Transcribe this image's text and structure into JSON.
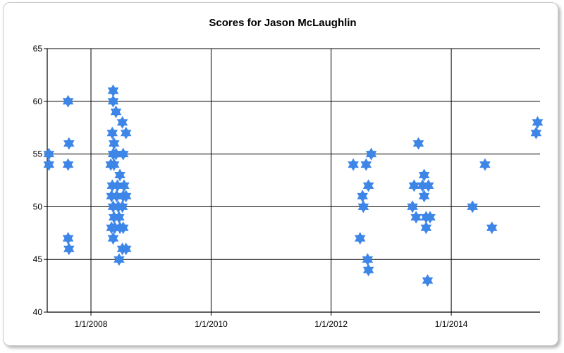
{
  "chart_data": {
    "type": "scatter",
    "title": "Scores for Jason McLaughlin",
    "xlabel": "",
    "ylabel": "",
    "x_axis_type": "date",
    "xlim": [
      "2007-04-10",
      "2015-06-25"
    ],
    "ylim": [
      40,
      65
    ],
    "grid": true,
    "marker": "six-pointed-star",
    "marker_color": "#3d86e8",
    "x_ticks": [
      {
        "value": "2008-01-01",
        "label": "1/1/2008"
      },
      {
        "value": "2010-01-01",
        "label": "1/1/2010"
      },
      {
        "value": "2012-01-01",
        "label": "1/1/2012"
      },
      {
        "value": "2014-01-01",
        "label": "1/1/2014"
      }
    ],
    "y_ticks": [
      40,
      45,
      50,
      55,
      60,
      65
    ],
    "series": [
      {
        "points": [
          {
            "x": "2007-04-20",
            "y": 55
          },
          {
            "x": "2007-04-20",
            "y": 54
          },
          {
            "x": "2007-08-15",
            "y": 60
          },
          {
            "x": "2007-08-20",
            "y": 56
          },
          {
            "x": "2007-08-15",
            "y": 54
          },
          {
            "x": "2007-08-15",
            "y": 47
          },
          {
            "x": "2007-08-20",
            "y": 46
          },
          {
            "x": "2008-05-15",
            "y": 61
          },
          {
            "x": "2008-05-15",
            "y": 60
          },
          {
            "x": "2008-06-01",
            "y": 59
          },
          {
            "x": "2008-07-10",
            "y": 58
          },
          {
            "x": "2008-05-10",
            "y": 57
          },
          {
            "x": "2008-08-01",
            "y": 57
          },
          {
            "x": "2008-05-20",
            "y": 56
          },
          {
            "x": "2008-05-15",
            "y": 55
          },
          {
            "x": "2008-06-01",
            "y": 55
          },
          {
            "x": "2008-07-15",
            "y": 55
          },
          {
            "x": "2008-05-01",
            "y": 54
          },
          {
            "x": "2008-05-20",
            "y": 54
          },
          {
            "x": "2008-06-25",
            "y": 53
          },
          {
            "x": "2008-05-10",
            "y": 52
          },
          {
            "x": "2008-06-10",
            "y": 52
          },
          {
            "x": "2008-07-20",
            "y": 52
          },
          {
            "x": "2008-05-05",
            "y": 51
          },
          {
            "x": "2008-06-05",
            "y": 51
          },
          {
            "x": "2008-07-15",
            "y": 51
          },
          {
            "x": "2008-08-01",
            "y": 51
          },
          {
            "x": "2008-05-15",
            "y": 50
          },
          {
            "x": "2008-06-15",
            "y": 50
          },
          {
            "x": "2008-07-10",
            "y": 50
          },
          {
            "x": "2008-05-20",
            "y": 49
          },
          {
            "x": "2008-06-20",
            "y": 49
          },
          {
            "x": "2008-05-05",
            "y": 48
          },
          {
            "x": "2008-05-25",
            "y": 48
          },
          {
            "x": "2008-06-25",
            "y": 48
          },
          {
            "x": "2008-07-15",
            "y": 48
          },
          {
            "x": "2008-05-15",
            "y": 47
          },
          {
            "x": "2008-07-10",
            "y": 46
          },
          {
            "x": "2008-08-01",
            "y": 46
          },
          {
            "x": "2008-06-20",
            "y": 45
          },
          {
            "x": "2012-05-15",
            "y": 54
          },
          {
            "x": "2012-07-10",
            "y": 51
          },
          {
            "x": "2012-07-15",
            "y": 50
          },
          {
            "x": "2012-06-25",
            "y": 47
          },
          {
            "x": "2012-08-01",
            "y": 54
          },
          {
            "x": "2012-09-01",
            "y": 55
          },
          {
            "x": "2012-08-15",
            "y": 52
          },
          {
            "x": "2012-08-10",
            "y": 45
          },
          {
            "x": "2012-08-15",
            "y": 44
          },
          {
            "x": "2013-05-10",
            "y": 50
          },
          {
            "x": "2013-05-20",
            "y": 52
          },
          {
            "x": "2013-06-01",
            "y": 49
          },
          {
            "x": "2013-06-15",
            "y": 56
          },
          {
            "x": "2013-07-10",
            "y": 52
          },
          {
            "x": "2013-07-20",
            "y": 53
          },
          {
            "x": "2013-07-20",
            "y": 51
          },
          {
            "x": "2013-08-01",
            "y": 49
          },
          {
            "x": "2013-08-01",
            "y": 48
          },
          {
            "x": "2013-08-15",
            "y": 52
          },
          {
            "x": "2013-08-25",
            "y": 49
          },
          {
            "x": "2013-08-10",
            "y": 43
          },
          {
            "x": "2014-05-10",
            "y": 50
          },
          {
            "x": "2014-07-25",
            "y": 54
          },
          {
            "x": "2014-09-05",
            "y": 48
          },
          {
            "x": "2015-06-01",
            "y": 57
          },
          {
            "x": "2015-06-10",
            "y": 58
          }
        ]
      }
    ]
  }
}
